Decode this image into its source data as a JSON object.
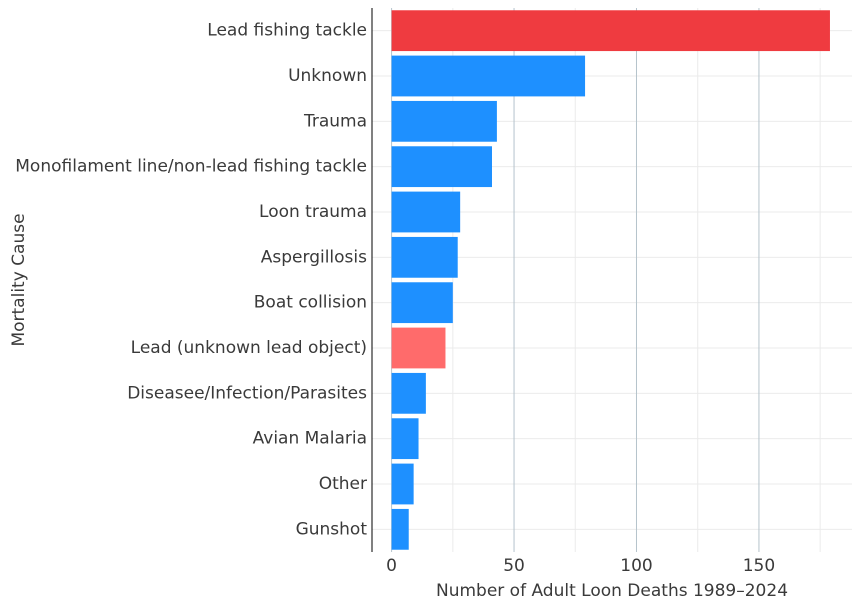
{
  "chart_data": {
    "type": "bar",
    "orientation": "horizontal",
    "categories": [
      "Lead fishing tackle",
      "Unknown",
      "Trauma",
      "Monofilament line/non-lead fishing tackle",
      "Loon trauma",
      "Aspergillosis",
      "Boat collision",
      "Lead (unknown lead object)",
      "Diseasee/Infection/Parasites",
      "Avian Malaria",
      "Other",
      "Gunshot"
    ],
    "values": [
      179,
      79,
      43,
      41,
      28,
      27,
      25,
      22,
      14,
      11,
      9,
      7
    ],
    "bar_colors": [
      "#ef3b40",
      "#1e90ff",
      "#1e90ff",
      "#1e90ff",
      "#1e90ff",
      "#1e90ff",
      "#1e90ff",
      "#ff6b6b",
      "#1e90ff",
      "#1e90ff",
      "#1e90ff",
      "#1e90ff"
    ],
    "xlabel": "Number of Adult Loon Deaths 1989–2024",
    "ylabel": "Mortality Cause",
    "xlim": [
      -8,
      188
    ],
    "xticks": [
      0,
      50,
      100,
      150
    ],
    "xtick_labels": [
      "0",
      "50",
      "100",
      "150"
    ],
    "grid": true,
    "legend": "none"
  },
  "colors": {
    "major_grid": "#b5c3cc",
    "minor_grid": "#ebebeb",
    "axis_line": "#000000",
    "text": "#3a3a3a"
  }
}
